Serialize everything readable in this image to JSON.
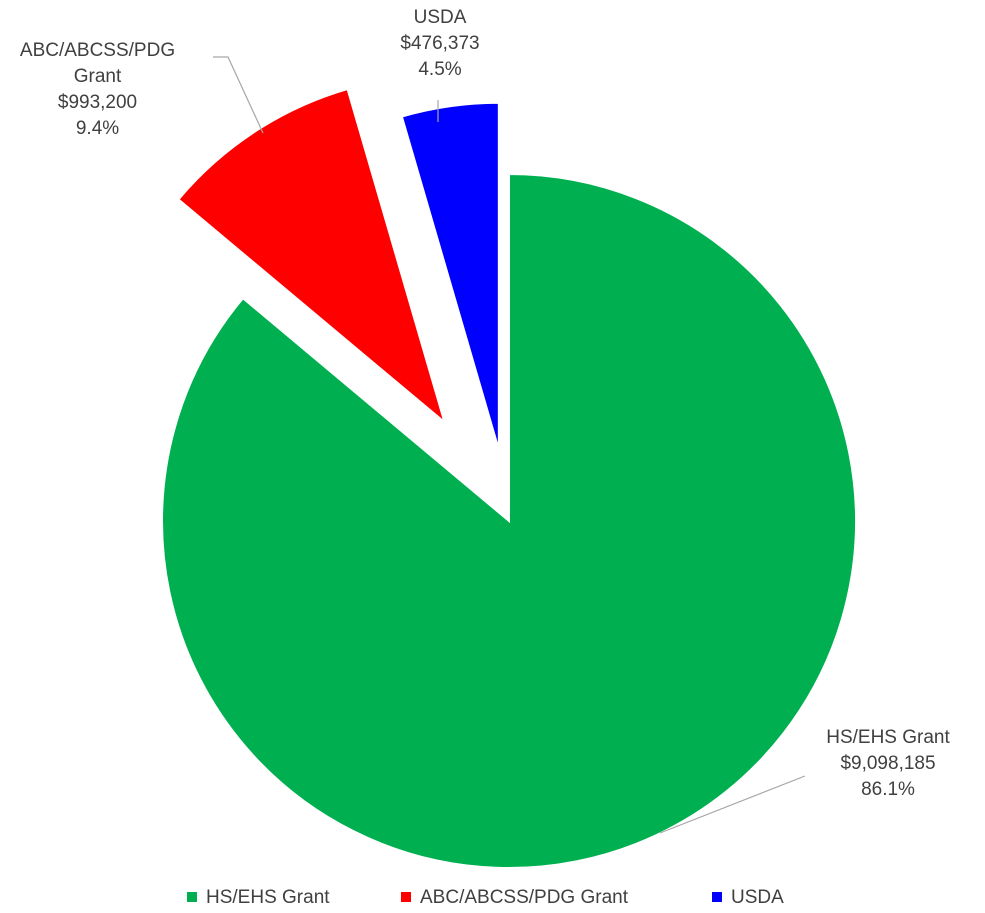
{
  "chart_data": {
    "type": "pie",
    "categories": [
      "HS/EHS Grant",
      "ABC/ABCSS/PDG Grant",
      "USDA"
    ],
    "values": [
      9098185,
      993200,
      476373
    ],
    "value_labels": [
      "$9,098,185",
      "$993,200",
      "$476,373"
    ],
    "percentages": [
      86.1,
      9.4,
      4.5
    ],
    "percentage_labels": [
      "86.1%",
      "9.4%",
      "4.5%"
    ],
    "colors": [
      "#00b050",
      "#ff0000",
      "#0000ff"
    ],
    "legend": "bottom"
  }
}
